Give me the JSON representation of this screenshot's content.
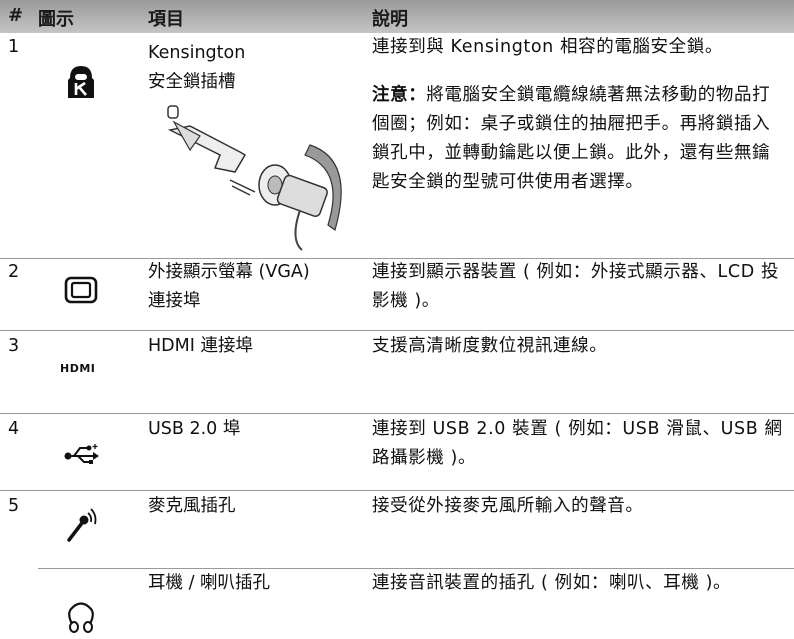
{
  "table": {
    "header": [
      "#",
      "圖示",
      "項目",
      "說明"
    ],
    "rows": [
      {
        "number": "1",
        "item": [
          "Kensington",
          "安全鎖插槽"
        ],
        "description": "連接到與 Kensington 相容的電腦安全鎖。",
        "note_label": "注意：",
        "note_text": "將電腦安全鎖電纜線繞著無法移動的物品打個圈；例如：桌子或鎖住的抽屜把手。再將鎖插入鎖孔中，並轉動鑰匙以便上鎖。此外，還有些無鑰匙安全鎖的型號可供使用者選擇。"
      },
      {
        "number": "2",
        "item": [
          "外接顯示螢幕 (VGA)",
          "連接埠"
        ],
        "description": "連接到顯示器裝置 ( 例如：外接式顯示器、LCD 投影機 )。"
      },
      {
        "number": "3",
        "icon_label": "HDMI",
        "item": [
          "HDMI 連接埠"
        ],
        "description": "支援高清晰度數位視訊連線。"
      },
      {
        "number": "4",
        "item": [
          "USB 2.0 埠"
        ],
        "description": "連接到 USB 2.0 裝置 ( 例如：USB 滑鼠、USB 網路攝影機 )。"
      },
      {
        "number": "5",
        "item": [
          "麥克風插孔"
        ],
        "description": "接受從外接麥克風所輸入的聲音。"
      },
      {
        "item": [
          "耳機 / 喇叭插孔"
        ],
        "description": "連接音訊裝置的插孔 ( 例如：喇叭、耳機 )。"
      }
    ]
  }
}
